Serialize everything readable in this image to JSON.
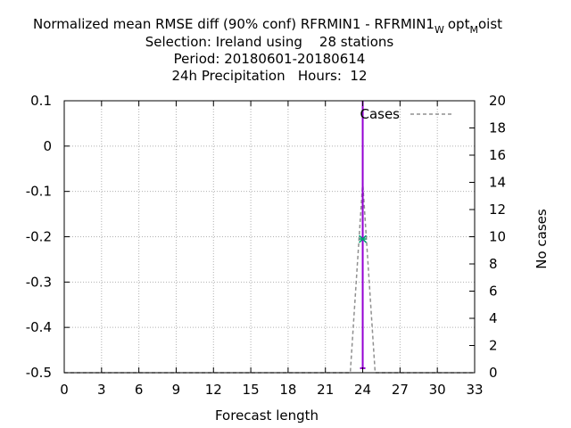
{
  "chart_data": {
    "type": "line",
    "title_lines": {
      "line1": {
        "prefix": "Normalized mean RMSE diff (90% conf) RFRMIN1 - RFRMIN1",
        "sub1": "W",
        "mid": "opt",
        "sub2": "M",
        "suffix": "oist"
      },
      "line2": "Selection: Ireland using    28 stations",
      "line3": "Period: 20180601-20180614",
      "line4": "24h Precipitation   Hours:  12"
    },
    "xlabel": "Forecast length",
    "ylabel": "",
    "y2label": "No cases",
    "xlim": [
      0,
      33
    ],
    "ylim": [
      -0.5,
      0.1
    ],
    "y2lim": [
      0,
      20
    ],
    "xticks": [
      "0",
      "3",
      "6",
      "9",
      "12",
      "15",
      "18",
      "21",
      "24",
      "27",
      "30",
      "33"
    ],
    "yticks": [
      "0.1",
      "0",
      "-0.1",
      "-0.2",
      "-0.3",
      "-0.4",
      "-0.5"
    ],
    "y2ticks": [
      "20",
      "18",
      "16",
      "14",
      "12",
      "10",
      "8",
      "6",
      "4",
      "2",
      "0"
    ],
    "grid": true,
    "legend_position": "top-right",
    "colors": {
      "diff": "#9400d3",
      "point": "#009e73",
      "cases": "#909090",
      "grid": "#b0b0b0"
    },
    "diff": {
      "x": 24,
      "mean": -0.205,
      "low": -0.49,
      "high": 0.1
    },
    "cases_series": {
      "name": "Cases",
      "x": [
        0,
        23,
        24,
        25,
        33
      ],
      "y": [
        0,
        0,
        14,
        0,
        0
      ]
    }
  }
}
